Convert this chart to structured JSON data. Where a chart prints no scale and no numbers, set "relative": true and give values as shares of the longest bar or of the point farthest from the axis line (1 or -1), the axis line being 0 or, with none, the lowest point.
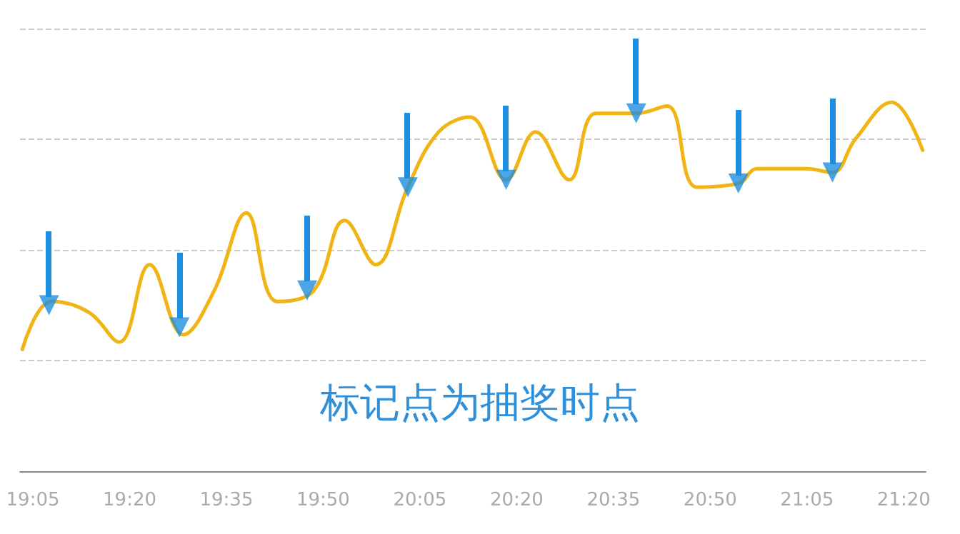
{
  "chart_data": {
    "type": "line",
    "relative": true,
    "tick_labels": "x",
    "grid": "y",
    "marker": "none",
    "line_style": "solid",
    "annotations": [
      "标记点为抽奖时点"
    ],
    "xlim": [
      19.05,
      21.39
    ],
    "xticks": [
      {
        "value": 19.0833,
        "label": "19:05"
      },
      {
        "value": 19.3333,
        "label": "19:20"
      },
      {
        "value": 19.5833,
        "label": "19:35"
      },
      {
        "value": 19.8333,
        "label": "19:50"
      },
      {
        "value": 20.0833,
        "label": "20:05"
      },
      {
        "value": 20.3333,
        "label": "20:20"
      },
      {
        "value": 20.5833,
        "label": "20:35"
      },
      {
        "value": 20.8333,
        "label": "20:50"
      },
      {
        "value": 21.0833,
        "label": "21:05"
      },
      {
        "value": 21.3333,
        "label": "21:20"
      }
    ],
    "series": [
      {
        "color": "#f0b414",
        "x": [
          19.056,
          19.132,
          19.229,
          19.306,
          19.385,
          19.472,
          19.552,
          19.635,
          19.715,
          19.809,
          19.889,
          19.969,
          20.052,
          20.132,
          20.212,
          20.306,
          20.382,
          20.469,
          20.538,
          20.642,
          20.722,
          20.799,
          20.906,
          20.955,
          21.08,
          21.149,
          21.208,
          21.302,
          21.382
        ],
        "values": [
          0.33,
          0.46,
          0.43,
          0.35,
          0.56,
          0.37,
          0.49,
          0.7,
          0.46,
          0.49,
          0.68,
          0.56,
          0.77,
          0.92,
          0.96,
          0.79,
          0.92,
          0.79,
          0.97,
          0.97,
          0.99,
          0.77,
          0.78,
          0.82,
          0.82,
          0.81,
          0.9,
          1,
          0.87
        ]
      },
      {
        "type": "scatter",
        "marker": "triangle",
        "color": "#1e8fe0",
        "x": [
          19.125,
          19.462,
          19.792,
          20.052,
          20.306,
          20.642,
          20.906,
          21.149
        ],
        "values": [
          0.45,
          0.39,
          0.49,
          0.77,
          0.79,
          0.97,
          0.78,
          0.81
        ]
      }
    ]
  }
}
